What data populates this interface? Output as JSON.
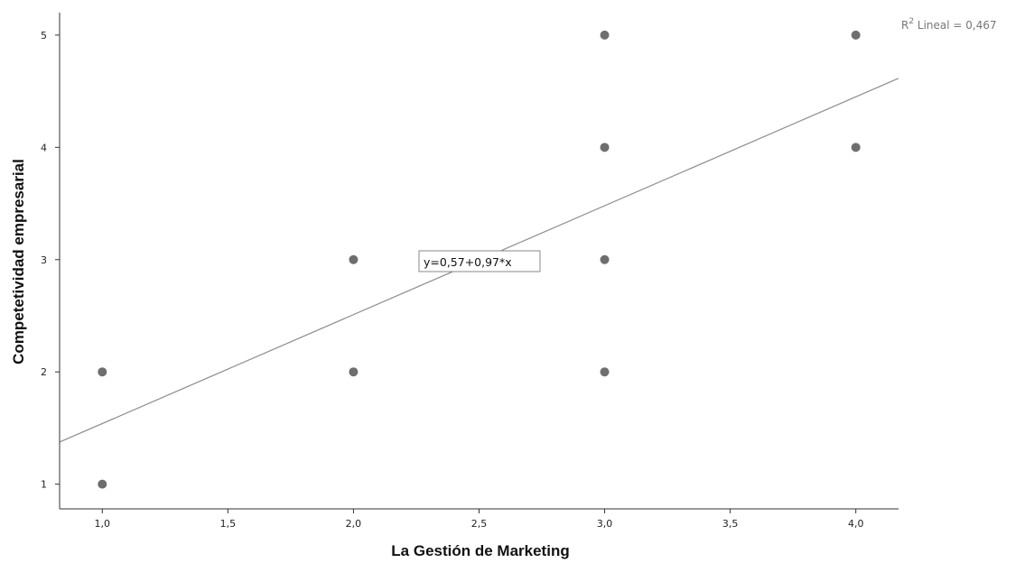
{
  "chart_data": {
    "type": "scatter",
    "xlabel": "La Gestión de Marketing",
    "ylabel": "Competetividad empresarial",
    "xlim": [
      0.83,
      4.17
    ],
    "ylim": [
      0.78,
      5.2
    ],
    "x_ticks": [
      1.0,
      1.5,
      2.0,
      2.5,
      3.0,
      3.5,
      4.0
    ],
    "x_tick_labels": [
      "1,0",
      "1,5",
      "2,0",
      "2,5",
      "3,0",
      "3,5",
      "4,0"
    ],
    "y_ticks": [
      1,
      2,
      3,
      4,
      5
    ],
    "y_tick_labels": [
      "1",
      "2",
      "3",
      "4",
      "5"
    ],
    "points": [
      {
        "x": 1,
        "y": 1
      },
      {
        "x": 1,
        "y": 2
      },
      {
        "x": 2,
        "y": 2
      },
      {
        "x": 2,
        "y": 3
      },
      {
        "x": 3,
        "y": 2
      },
      {
        "x": 3,
        "y": 3
      },
      {
        "x": 3,
        "y": 4
      },
      {
        "x": 3,
        "y": 5
      },
      {
        "x": 4,
        "y": 4
      },
      {
        "x": 4,
        "y": 5
      }
    ],
    "fit_line": {
      "intercept": 0.57,
      "slope": 0.97,
      "equation_label": "y=0,57+0,97*x",
      "r2_prefix": "R",
      "r2_sup": "2",
      "r2_suffix": " Lineal = 0,467"
    },
    "grid": false,
    "colors": {
      "points": "#6e6e6e",
      "line": "#8c8c8c",
      "axes": "#333333"
    }
  }
}
